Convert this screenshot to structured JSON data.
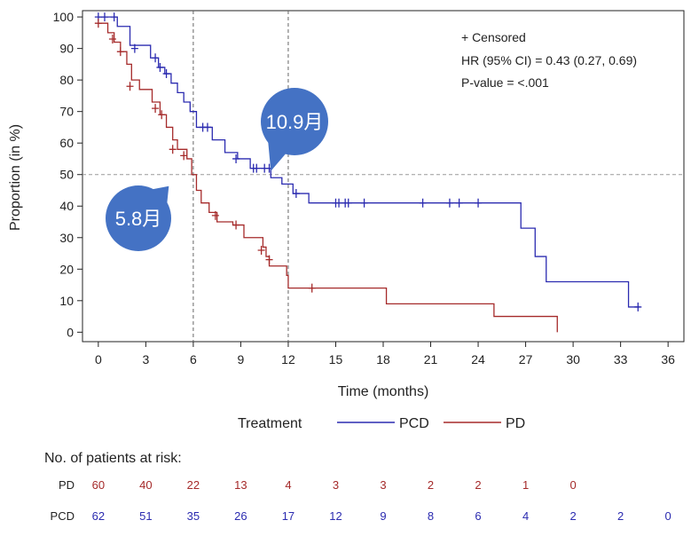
{
  "chart_data": {
    "type": "line",
    "subtype": "kaplan-meier",
    "xlabel": "Time (months)",
    "ylabel": "Proportion (in %)",
    "xlim": [
      -1,
      37
    ],
    "ylim": [
      -3,
      102
    ],
    "xticks": [
      0,
      3,
      6,
      9,
      12,
      15,
      18,
      21,
      24,
      27,
      30,
      33,
      36
    ],
    "yticks": [
      0,
      10,
      20,
      30,
      40,
      50,
      60,
      70,
      80,
      90,
      100
    ],
    "reference_lines": {
      "horizontal_y": 50,
      "vertical_x": [
        6,
        12
      ]
    },
    "annotations": {
      "censored_label": "+ Censored",
      "hr_text": "HR (95% CI) = 0.43 (0.27, 0.69)",
      "p_text": "P-value = <.001"
    },
    "median_labels": [
      {
        "series": "PCD",
        "text": "10.9月",
        "x": 10.9
      },
      {
        "series": "PD",
        "text": "5.8月",
        "x": 5.8
      }
    ],
    "legend": {
      "title": "Treatment",
      "position": "bottom"
    },
    "series": [
      {
        "name": "PCD",
        "color": "#2b2bb0",
        "steps": [
          [
            0,
            100
          ],
          [
            1.2,
            97
          ],
          [
            2,
            91
          ],
          [
            3.3,
            87
          ],
          [
            3.8,
            84
          ],
          [
            4.2,
            82
          ],
          [
            4.6,
            79
          ],
          [
            5.0,
            76
          ],
          [
            5.4,
            73
          ],
          [
            5.8,
            70
          ],
          [
            6.2,
            65
          ],
          [
            7.2,
            61
          ],
          [
            8.0,
            57
          ],
          [
            8.8,
            55
          ],
          [
            9.6,
            52
          ],
          [
            10.9,
            49
          ],
          [
            11.6,
            47
          ],
          [
            12.3,
            44
          ],
          [
            13.3,
            41
          ],
          [
            26.7,
            33
          ],
          [
            27.6,
            24
          ],
          [
            28.3,
            16
          ],
          [
            33.5,
            8
          ],
          [
            34.2,
            8
          ]
        ],
        "censored": [
          [
            0,
            100
          ],
          [
            0.4,
            100
          ],
          [
            1.0,
            100
          ],
          [
            2.3,
            90
          ],
          [
            3.6,
            87
          ],
          [
            3.9,
            84
          ],
          [
            4.3,
            82
          ],
          [
            6.6,
            65
          ],
          [
            6.9,
            65
          ],
          [
            8.7,
            55
          ],
          [
            9.8,
            52
          ],
          [
            10.0,
            52
          ],
          [
            10.5,
            52
          ],
          [
            10.8,
            52
          ],
          [
            12.5,
            44
          ],
          [
            15.0,
            41
          ],
          [
            15.2,
            41
          ],
          [
            15.6,
            41
          ],
          [
            15.8,
            41
          ],
          [
            16.8,
            41
          ],
          [
            20.5,
            41
          ],
          [
            22.2,
            41
          ],
          [
            22.8,
            41
          ],
          [
            24.0,
            41
          ],
          [
            34.1,
            8
          ]
        ]
      },
      {
        "name": "PD",
        "color": "#a52a2a",
        "steps": [
          [
            0,
            98
          ],
          [
            0.6,
            95
          ],
          [
            1.0,
            92
          ],
          [
            1.4,
            89
          ],
          [
            1.8,
            85
          ],
          [
            2.1,
            80
          ],
          [
            2.6,
            77
          ],
          [
            3.4,
            73
          ],
          [
            3.9,
            69
          ],
          [
            4.3,
            65
          ],
          [
            4.7,
            61
          ],
          [
            5.0,
            58
          ],
          [
            5.6,
            55
          ],
          [
            5.9,
            50
          ],
          [
            6.2,
            45
          ],
          [
            6.5,
            41
          ],
          [
            7.0,
            38
          ],
          [
            7.5,
            35
          ],
          [
            8.5,
            34
          ],
          [
            9.2,
            30
          ],
          [
            10.4,
            27
          ],
          [
            10.6,
            24
          ],
          [
            10.8,
            21
          ],
          [
            11.9,
            18
          ],
          [
            12.0,
            14
          ],
          [
            18.2,
            9
          ],
          [
            25.0,
            5
          ],
          [
            29.0,
            0
          ]
        ],
        "censored": [
          [
            0,
            98
          ],
          [
            0.9,
            93
          ],
          [
            1.4,
            89
          ],
          [
            2.0,
            78
          ],
          [
            3.6,
            71
          ],
          [
            4.0,
            69
          ],
          [
            4.7,
            58
          ],
          [
            5.4,
            56
          ],
          [
            7.4,
            37
          ],
          [
            8.7,
            34
          ],
          [
            10.3,
            26
          ],
          [
            10.8,
            23
          ],
          [
            13.5,
            14
          ]
        ]
      }
    ]
  },
  "risk_table": {
    "title": "No. of patients at risk:",
    "rows": [
      {
        "label": "PD",
        "color": "#a52a2a",
        "values": [
          "60",
          "40",
          "22",
          "13",
          "4",
          "3",
          "3",
          "2",
          "2",
          "1",
          "0",
          "",
          ""
        ]
      },
      {
        "label": "PCD",
        "color": "#2b2bb0",
        "values": [
          "62",
          "51",
          "35",
          "26",
          "17",
          "12",
          "9",
          "8",
          "6",
          "4",
          "2",
          "2",
          "0"
        ]
      }
    ]
  },
  "colors": {
    "bubble": "#4472c4",
    "reference_line": "#999999",
    "axis": "#222222"
  }
}
